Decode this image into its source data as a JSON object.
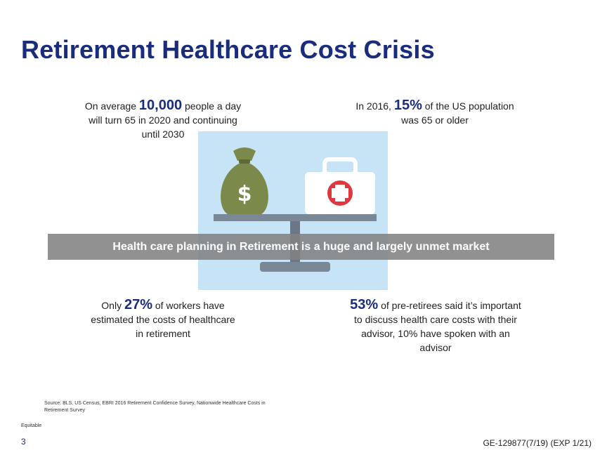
{
  "title": "Retirement Healthcare Cost Crisis",
  "stats": {
    "top_left": {
      "prefix": "On average ",
      "value": "10,000",
      "suffix": " people a day",
      "line2": "will turn 65 in 2020 and continuing",
      "line3": "until 2030"
    },
    "top_right": {
      "prefix": "In 2016, ",
      "value": "15%",
      "suffix": " of the US population",
      "line2": "was 65 or older"
    },
    "bottom_left": {
      "prefix": "Only ",
      "value": "27%",
      "suffix": " of workers have",
      "line2": "estimated the costs of healthcare",
      "line3": "in retirement"
    },
    "bottom_right": {
      "value": "53%",
      "suffix": " of pre-retirees said it’s important",
      "line2": "to discuss health care costs with their",
      "line3": "advisor, 10% have spoken with an",
      "line4": "advisor"
    }
  },
  "illustration": {
    "bag_symbol": "$",
    "icons": [
      "money-bag-icon",
      "first-aid-kit-icon",
      "balance-scale-icon"
    ],
    "colors": {
      "panel": "#c6e4f6",
      "bag": "#7b8a4a",
      "kit": "#ffffff",
      "cross": "#e0373e",
      "scale": "#7a8796"
    }
  },
  "banner": "Health care planning in Retirement is a huge and largely unmet market",
  "source": "Source: BLS, US Census, EBRI 2016 Retirement Confidence Survey, Nationwide Healthcare Costs in Retirement Survey",
  "brand": "Equitable",
  "page_number": "3",
  "doc_id": "GE-129877(7/19) (EXP 1/21)",
  "colors": {
    "title": "#1a2d7c",
    "banner_bg": "#828282",
    "banner_text": "#ffffff"
  }
}
